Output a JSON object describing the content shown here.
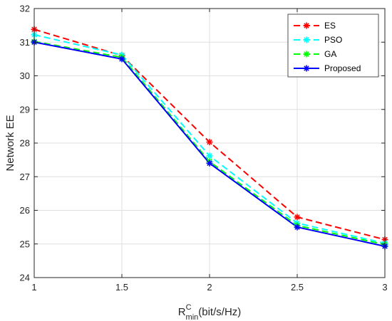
{
  "chart_data": {
    "type": "line",
    "x": [
      1,
      1.5,
      2,
      2.5,
      3
    ],
    "xlim": [
      1,
      3
    ],
    "ylim": [
      24,
      32
    ],
    "xticks": [
      "1",
      "1.5",
      "2",
      "2.5",
      "3"
    ],
    "yticks": [
      "24",
      "25",
      "26",
      "27",
      "28",
      "29",
      "30",
      "31",
      "32"
    ],
    "xlabel": {
      "main": "R",
      "sup": "C",
      "sub": "min",
      "rest": "(bit/s/Hz)"
    },
    "ylabel": "Network EE",
    "grid": true,
    "legend_position": "top-right",
    "series": [
      {
        "name": "ES",
        "color": "#ff0000",
        "dash": "dashed",
        "values": [
          31.38,
          30.6,
          28.03,
          25.8,
          25.13
        ]
      },
      {
        "name": "PSO",
        "color": "#00ffff",
        "dash": "dashed",
        "values": [
          31.22,
          30.62,
          27.62,
          25.62,
          25.02
        ]
      },
      {
        "name": "GA",
        "color": "#00ff00",
        "dash": "dashed",
        "values": [
          31.02,
          30.55,
          27.45,
          25.55,
          24.98
        ]
      },
      {
        "name": "Proposed",
        "color": "#0000ff",
        "dash": "solid",
        "values": [
          31.0,
          30.5,
          27.4,
          25.5,
          24.93
        ]
      }
    ]
  }
}
